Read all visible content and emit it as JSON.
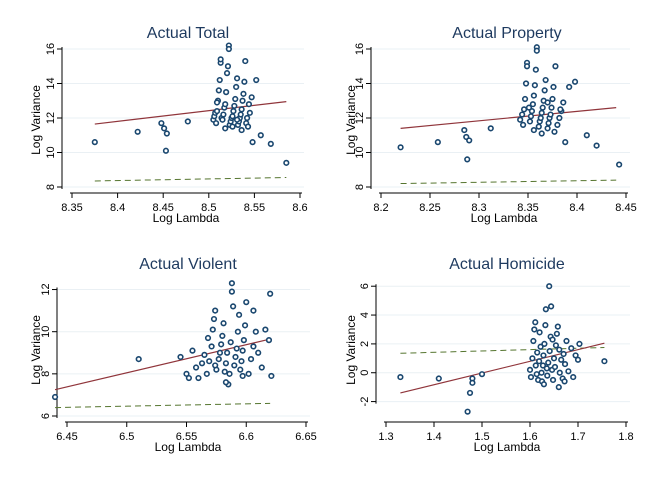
{
  "colors": {
    "marker": "#1a476f",
    "fit": "#90353b",
    "dashed": "#55752f",
    "title": "#1e3a5f",
    "grid": "#eaf0f4"
  },
  "chart_data": [
    {
      "type": "scatter",
      "title": "Actual Total",
      "xlabel": "Log Lambda",
      "ylabel": "Log Variance",
      "xlim": [
        8.36,
        8.6
      ],
      "ylim": [
        8,
        16
      ],
      "xticks": [
        "8.35",
        "8.4",
        "8.45",
        "8.5",
        "8.55",
        "8.6"
      ],
      "xtick_values": [
        8.35,
        8.4,
        8.45,
        8.5,
        8.55,
        8.6
      ],
      "yticks": [
        "8",
        "10",
        "12",
        "14",
        "16"
      ],
      "ytick_values": [
        8,
        10,
        12,
        14,
        16
      ],
      "fit_line": {
        "x": [
          8.375,
          8.585
        ],
        "y": [
          11.65,
          12.95
        ]
      },
      "dashed_line": {
        "x": [
          8.375,
          8.585
        ],
        "y": [
          8.35,
          8.55
        ]
      },
      "points": [
        [
          8.375,
          10.6
        ],
        [
          8.422,
          11.2
        ],
        [
          8.448,
          11.7
        ],
        [
          8.451,
          11.4
        ],
        [
          8.453,
          10.1
        ],
        [
          8.454,
          11.1
        ],
        [
          8.477,
          11.8
        ],
        [
          8.505,
          11.9
        ],
        [
          8.506,
          12.1
        ],
        [
          8.507,
          12.3
        ],
        [
          8.508,
          11.7
        ],
        [
          8.509,
          12.4
        ],
        [
          8.51,
          13.0
        ],
        [
          8.511,
          13.6
        ],
        [
          8.512,
          14.2
        ],
        [
          8.513,
          15.2
        ],
        [
          8.513,
          15.4
        ],
        [
          8.514,
          12.0
        ],
        [
          8.515,
          11.9
        ],
        [
          8.516,
          12.2
        ],
        [
          8.517,
          12.6
        ],
        [
          8.518,
          12.8
        ],
        [
          8.519,
          13.5
        ],
        [
          8.52,
          14.6
        ],
        [
          8.521,
          15.0
        ],
        [
          8.522,
          16.2
        ],
        [
          8.522,
          16.0
        ],
        [
          8.523,
          11.6
        ],
        [
          8.524,
          11.8
        ],
        [
          8.525,
          12.0
        ],
        [
          8.526,
          12.1
        ],
        [
          8.527,
          12.4
        ],
        [
          8.528,
          12.7
        ],
        [
          8.529,
          13.1
        ],
        [
          8.53,
          13.8
        ],
        [
          8.531,
          14.3
        ],
        [
          8.532,
          11.6
        ],
        [
          8.533,
          11.8
        ],
        [
          8.534,
          12.0
        ],
        [
          8.535,
          12.2
        ],
        [
          8.536,
          12.5
        ],
        [
          8.537,
          13.0
        ],
        [
          8.538,
          13.4
        ],
        [
          8.539,
          14.1
        ],
        [
          8.54,
          15.3
        ],
        [
          8.541,
          11.7
        ],
        [
          8.542,
          12.0
        ],
        [
          8.543,
          11.5
        ],
        [
          8.545,
          12.3
        ],
        [
          8.547,
          13.2
        ],
        [
          8.548,
          10.6
        ],
        [
          8.552,
          14.2
        ],
        [
          8.557,
          11.0
        ],
        [
          8.568,
          10.5
        ],
        [
          8.585,
          9.4
        ],
        [
          8.518,
          11.4
        ],
        [
          8.526,
          11.5
        ],
        [
          8.531,
          11.9
        ],
        [
          8.536,
          11.3
        ],
        [
          8.544,
          12.8
        ],
        [
          8.509,
          12.9
        ]
      ]
    },
    {
      "type": "scatter",
      "title": "Actual Property",
      "xlabel": "Log Lambda",
      "ylabel": "Log Variance",
      "xlim": [
        8.2,
        8.45
      ],
      "ylim": [
        8,
        16
      ],
      "xticks": [
        "8.2",
        "8.25",
        "8.3",
        "8.35",
        "8.4",
        "8.45"
      ],
      "xtick_values": [
        8.2,
        8.25,
        8.3,
        8.35,
        8.4,
        8.45
      ],
      "yticks": [
        "8",
        "10",
        "12",
        "14",
        "16"
      ],
      "ytick_values": [
        8,
        10,
        12,
        14,
        16
      ],
      "fit_line": {
        "x": [
          8.22,
          8.44
        ],
        "y": [
          11.4,
          12.6
        ]
      },
      "dashed_line": {
        "x": [
          8.22,
          8.44
        ],
        "y": [
          8.2,
          8.4
        ]
      },
      "points": [
        [
          8.22,
          10.3
        ],
        [
          8.258,
          10.6
        ],
        [
          8.285,
          11.3
        ],
        [
          8.287,
          10.9
        ],
        [
          8.288,
          9.6
        ],
        [
          8.29,
          10.7
        ],
        [
          8.312,
          11.4
        ],
        [
          8.342,
          11.9
        ],
        [
          8.344,
          12.2
        ],
        [
          8.345,
          11.6
        ],
        [
          8.346,
          12.5
        ],
        [
          8.347,
          13.1
        ],
        [
          8.348,
          14.0
        ],
        [
          8.349,
          15.2
        ],
        [
          8.349,
          15.0
        ],
        [
          8.352,
          11.8
        ],
        [
          8.353,
          12.1
        ],
        [
          8.354,
          12.4
        ],
        [
          8.355,
          12.8
        ],
        [
          8.356,
          13.3
        ],
        [
          8.357,
          13.9
        ],
        [
          8.358,
          14.8
        ],
        [
          8.359,
          16.1
        ],
        [
          8.359,
          15.9
        ],
        [
          8.361,
          11.5
        ],
        [
          8.362,
          11.8
        ],
        [
          8.363,
          12.0
        ],
        [
          8.364,
          12.3
        ],
        [
          8.365,
          12.6
        ],
        [
          8.366,
          13.0
        ],
        [
          8.367,
          13.6
        ],
        [
          8.368,
          14.2
        ],
        [
          8.37,
          11.4
        ],
        [
          8.371,
          11.7
        ],
        [
          8.372,
          12.0
        ],
        [
          8.373,
          12.2
        ],
        [
          8.374,
          12.6
        ],
        [
          8.375,
          13.1
        ],
        [
          8.376,
          13.8
        ],
        [
          8.378,
          15.0
        ],
        [
          8.38,
          11.6
        ],
        [
          8.382,
          12.0
        ],
        [
          8.384,
          12.4
        ],
        [
          8.386,
          12.9
        ],
        [
          8.388,
          10.6
        ],
        [
          8.392,
          13.8
        ],
        [
          8.398,
          14.1
        ],
        [
          8.41,
          11.0
        ],
        [
          8.42,
          10.4
        ],
        [
          8.443,
          9.3
        ],
        [
          8.356,
          11.3
        ],
        [
          8.364,
          11.1
        ],
        [
          8.37,
          12.9
        ],
        [
          8.377,
          11.2
        ],
        [
          8.383,
          12.5
        ],
        [
          8.351,
          12.6
        ]
      ]
    },
    {
      "type": "scatter",
      "title": "Actual Violent",
      "xlabel": "Log Lambda",
      "ylabel": "Log Variance",
      "xlim": [
        6.44,
        6.65
      ],
      "ylim": [
        6,
        12.5
      ],
      "xticks": [
        "6.45",
        "6.5",
        "6.55",
        "6.6",
        "6.65"
      ],
      "xtick_values": [
        6.45,
        6.5,
        6.55,
        6.6,
        6.65
      ],
      "yticks": [
        "6",
        "8",
        "10",
        "12"
      ],
      "ytick_values": [
        6,
        8,
        10,
        12
      ],
      "fit_line": {
        "x": [
          6.44,
          6.62
        ],
        "y": [
          7.25,
          9.65
        ]
      },
      "dashed_line": {
        "x": [
          6.44,
          6.62
        ],
        "y": [
          6.4,
          6.6
        ]
      },
      "points": [
        [
          6.44,
          6.9
        ],
        [
          6.51,
          8.7
        ],
        [
          6.545,
          8.8
        ],
        [
          6.55,
          8.0
        ],
        [
          6.552,
          7.8
        ],
        [
          6.555,
          9.1
        ],
        [
          6.558,
          8.3
        ],
        [
          6.56,
          7.8
        ],
        [
          6.563,
          8.5
        ],
        [
          6.565,
          8.9
        ],
        [
          6.567,
          8.0
        ],
        [
          6.569,
          8.6
        ],
        [
          6.571,
          9.3
        ],
        [
          6.572,
          10.1
        ],
        [
          6.573,
          10.6
        ],
        [
          6.574,
          11.0
        ],
        [
          6.575,
          8.2
        ],
        [
          6.577,
          8.7
        ],
        [
          6.578,
          9.0
        ],
        [
          6.579,
          9.4
        ],
        [
          6.58,
          9.8
        ],
        [
          6.581,
          10.4
        ],
        [
          6.582,
          8.1
        ],
        [
          6.583,
          8.5
        ],
        [
          6.584,
          9.0
        ],
        [
          6.585,
          7.5
        ],
        [
          6.586,
          8.0
        ],
        [
          6.587,
          9.5
        ],
        [
          6.588,
          12.3
        ],
        [
          6.588,
          11.9
        ],
        [
          6.589,
          11.2
        ],
        [
          6.59,
          8.4
        ],
        [
          6.591,
          8.8
        ],
        [
          6.592,
          9.2
        ],
        [
          6.593,
          10.0
        ],
        [
          6.594,
          10.8
        ],
        [
          6.595,
          8.2
        ],
        [
          6.596,
          8.6
        ],
        [
          6.597,
          9.1
        ],
        [
          6.598,
          9.6
        ],
        [
          6.599,
          10.3
        ],
        [
          6.6,
          11.4
        ],
        [
          6.602,
          8.0
        ],
        [
          6.604,
          8.7
        ],
        [
          6.606,
          9.3
        ],
        [
          6.608,
          10.0
        ],
        [
          6.61,
          9.0
        ],
        [
          6.613,
          8.3
        ],
        [
          6.616,
          10.1
        ],
        [
          6.619,
          9.6
        ],
        [
          6.62,
          11.8
        ],
        [
          6.621,
          7.9
        ],
        [
          6.574,
          8.4
        ],
        [
          6.583,
          7.6
        ],
        [
          6.597,
          7.9
        ],
        [
          6.606,
          11.0
        ],
        [
          6.568,
          9.7
        ]
      ]
    },
    {
      "type": "scatter",
      "title": "Actual Homicide",
      "xlabel": "Log Lambda",
      "ylabel": "Log Variance",
      "xlim": [
        1.3,
        1.8
      ],
      "ylim": [
        -3,
        6.5
      ],
      "xticks": [
        "1.3",
        "1.4",
        "1.5",
        "1.6",
        "1.7",
        "1.8"
      ],
      "xtick_values": [
        1.3,
        1.4,
        1.5,
        1.6,
        1.7,
        1.8
      ],
      "yticks": [
        "-2",
        "0",
        "2",
        "4",
        "6"
      ],
      "ytick_values": [
        -2,
        0,
        2,
        4,
        6
      ],
      "fit_line": {
        "x": [
          1.33,
          1.755
        ],
        "y": [
          -1.4,
          2.05
        ]
      },
      "dashed_line": {
        "x": [
          1.33,
          1.755
        ],
        "y": [
          1.35,
          1.75
        ]
      },
      "points": [
        [
          1.33,
          -0.3
        ],
        [
          1.41,
          -0.4
        ],
        [
          1.47,
          -2.7
        ],
        [
          1.475,
          -1.4
        ],
        [
          1.48,
          -0.4
        ],
        [
          1.48,
          -0.7
        ],
        [
          1.5,
          -0.1
        ],
        [
          1.6,
          0.2
        ],
        [
          1.602,
          -0.3
        ],
        [
          1.605,
          1.0
        ],
        [
          1.607,
          2.2
        ],
        [
          1.609,
          3.0
        ],
        [
          1.611,
          3.5
        ],
        [
          1.612,
          0.5
        ],
        [
          1.615,
          1.4
        ],
        [
          1.617,
          -0.5
        ],
        [
          1.619,
          0.8
        ],
        [
          1.62,
          2.8
        ],
        [
          1.622,
          1.8
        ],
        [
          1.624,
          0.0
        ],
        [
          1.625,
          -0.6
        ],
        [
          1.627,
          0.5
        ],
        [
          1.628,
          1.2
        ],
        [
          1.63,
          2.0
        ],
        [
          1.632,
          3.3
        ],
        [
          1.633,
          4.4
        ],
        [
          1.635,
          0.3
        ],
        [
          1.636,
          -0.2
        ],
        [
          1.638,
          0.7
        ],
        [
          1.64,
          6.0
        ],
        [
          1.641,
          1.5
        ],
        [
          1.643,
          2.5
        ],
        [
          1.644,
          4.6
        ],
        [
          1.646,
          0.2
        ],
        [
          1.648,
          -0.5
        ],
        [
          1.65,
          1.0
        ],
        [
          1.652,
          0.4
        ],
        [
          1.654,
          1.9
        ],
        [
          1.656,
          2.7
        ],
        [
          1.658,
          3.2
        ],
        [
          1.66,
          -1.0
        ],
        [
          1.662,
          0.0
        ],
        [
          1.665,
          0.9
        ],
        [
          1.668,
          -0.4
        ],
        [
          1.67,
          1.3
        ],
        [
          1.673,
          0.6
        ],
        [
          1.676,
          2.2
        ],
        [
          1.68,
          0.1
        ],
        [
          1.686,
          1.7
        ],
        [
          1.69,
          -0.3
        ],
        [
          1.7,
          0.9
        ],
        [
          1.703,
          2.0
        ],
        [
          1.755,
          0.8
        ],
        [
          1.614,
          -0.1
        ],
        [
          1.629,
          -0.8
        ],
        [
          1.647,
          2.3
        ],
        [
          1.661,
          1.6
        ],
        [
          1.672,
          -0.6
        ],
        [
          1.695,
          1.2
        ]
      ]
    }
  ]
}
